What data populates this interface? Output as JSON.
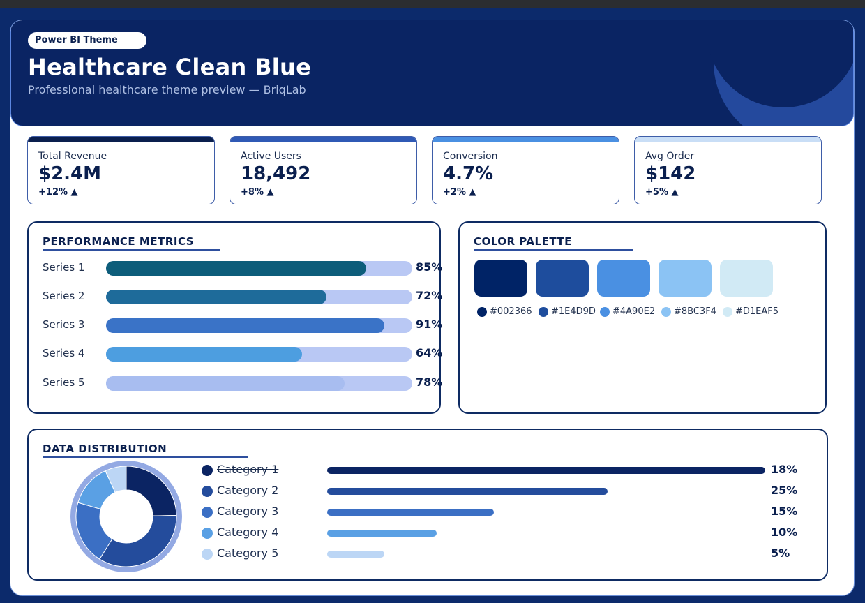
{
  "header": {
    "badge": "Power BI Theme",
    "title": "Healthcare Clean Blue",
    "subtitle": "Professional healthcare theme preview — BriqLab"
  },
  "kpis": [
    {
      "label": "Total Revenue",
      "value": "$2.4M",
      "delta": "+12% ▲",
      "accent": "#0a1f4e"
    },
    {
      "label": "Active Users",
      "value": "18,492",
      "delta": "+8% ▲",
      "accent": "#2f59b5"
    },
    {
      "label": "Conversion",
      "value": "4.7%",
      "delta": "+2% ▲",
      "accent": "#4a90e2"
    },
    {
      "label": "Avg Order",
      "value": "$142",
      "delta": "+5% ▲",
      "accent": "#c9def6"
    }
  ],
  "performance": {
    "title": "PERFORMANCE METRICS",
    "rows": [
      {
        "label": "Series 1",
        "percent": 85,
        "percent_label": "85%",
        "color": "#0d5d7a"
      },
      {
        "label": "Series 2",
        "percent": 72,
        "percent_label": "72%",
        "color": "#1e6b9a"
      },
      {
        "label": "Series 3",
        "percent": 91,
        "percent_label": "91%",
        "color": "#3a73c7"
      },
      {
        "label": "Series 4",
        "percent": 64,
        "percent_label": "64%",
        "color": "#4d9ee0"
      },
      {
        "label": "Series 5",
        "percent": 78,
        "percent_label": "78%",
        "color": "#a8bdf0"
      }
    ]
  },
  "palette": {
    "title": "COLOR PALETTE",
    "colors": [
      {
        "code": "#002366",
        "hex": "#002366"
      },
      {
        "code": "#1E4D9D",
        "hex": "#1E4D9D"
      },
      {
        "code": "#4A90E2",
        "hex": "#4A90E2"
      },
      {
        "code": "#8BC3F4",
        "hex": "#8BC3F4"
      },
      {
        "code": "#D1EAF5",
        "hex": "#D1EAF5"
      }
    ]
  },
  "distribution": {
    "title": "DATA DISTRIBUTION",
    "items": [
      {
        "label": "Category 1",
        "percent": 18,
        "percent_label": "18%",
        "color": "#0b2463",
        "bar_fill": 1.0,
        "struck": true
      },
      {
        "label": "Category 2",
        "percent": 25,
        "percent_label": "25%",
        "color": "#244c9c",
        "bar_fill": 0.64,
        "struck": false
      },
      {
        "label": "Category 3",
        "percent": 15,
        "percent_label": "15%",
        "color": "#3b6fc4",
        "bar_fill": 0.38,
        "struck": false
      },
      {
        "label": "Category 4",
        "percent": 10,
        "percent_label": "10%",
        "color": "#5aa0e4",
        "bar_fill": 0.25,
        "struck": false
      },
      {
        "label": "Category 5",
        "percent": 5,
        "percent_label": "5%",
        "color": "#bcd6f5",
        "bar_fill": 0.13,
        "struck": false
      }
    ]
  }
}
